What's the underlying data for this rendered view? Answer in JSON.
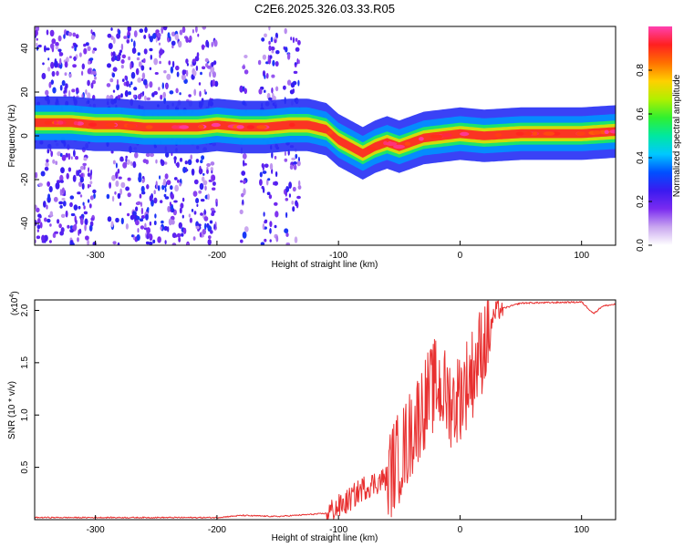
{
  "title": "C2E6.2025.326.03.33.R05",
  "chart_data": [
    {
      "type": "heatmap",
      "xlabel": "Height of straight line (km)",
      "ylabel": "Frequency (Hz)",
      "xlim": [
        -350,
        128
      ],
      "ylim": [
        -50,
        50
      ],
      "x_ticks": [
        -300,
        -200,
        -100,
        0,
        100
      ],
      "y_ticks": [
        -40,
        -20,
        0,
        20,
        40
      ],
      "colorbar": {
        "label": "Normalized spectral amplitude",
        "range": [
          0,
          1
        ],
        "ticks": [
          "0.0",
          "0.2",
          "0.4",
          "0.6",
          "0.8"
        ],
        "colormap": [
          "#ffffff",
          "#c9a6ef",
          "#7a2bf0",
          "#3a1af0",
          "#0050ff",
          "#00c8ff",
          "#00e8a0",
          "#30f030",
          "#b0f000",
          "#ffd000",
          "#ff7000",
          "#ff2020",
          "#ff40b0"
        ]
      },
      "ridge": [
        {
          "x": -345,
          "f": 6
        },
        {
          "x": -320,
          "f": 6
        },
        {
          "x": -300,
          "f": 5
        },
        {
          "x": -280,
          "f": 5
        },
        {
          "x": -260,
          "f": 4
        },
        {
          "x": -240,
          "f": 4
        },
        {
          "x": -215,
          "f": 4
        },
        {
          "x": -200,
          "f": 5
        },
        {
          "x": -180,
          "f": 4
        },
        {
          "x": -160,
          "f": 4
        },
        {
          "x": -140,
          "f": 5
        },
        {
          "x": -125,
          "f": 5
        },
        {
          "x": -110,
          "f": 3
        },
        {
          "x": -100,
          "f": -2
        },
        {
          "x": -90,
          "f": -5
        },
        {
          "x": -80,
          "f": -8
        },
        {
          "x": -70,
          "f": -5
        },
        {
          "x": -60,
          "f": -3
        },
        {
          "x": -50,
          "f": -5
        },
        {
          "x": -40,
          "f": -3
        },
        {
          "x": -30,
          "f": -1
        },
        {
          "x": -15,
          "f": 0
        },
        {
          "x": 0,
          "f": 1
        },
        {
          "x": 20,
          "f": 0
        },
        {
          "x": 50,
          "f": 1
        },
        {
          "x": 80,
          "f": 1
        },
        {
          "x": 100,
          "f": 1
        },
        {
          "x": 128,
          "f": 2
        }
      ],
      "noise_bands": [
        [
          -350,
          -300
        ],
        [
          -290,
          -200
        ],
        [
          -180,
          -175
        ],
        [
          -165,
          -150
        ],
        [
          -145,
          -132
        ]
      ]
    },
    {
      "type": "line",
      "xlabel": "Height of straight line (km)",
      "ylabel": "SNR (10 * v/v)",
      "y_multiplier": "(x10",
      "y_multiplier_exp": "4",
      "xlim": [
        -350,
        128
      ],
      "ylim": [
        0,
        2.1
      ],
      "x_ticks": [
        -300,
        -200,
        -100,
        0,
        100
      ],
      "y_ticks": [
        "0.5",
        "1.0",
        "1.5",
        "2.0"
      ],
      "line_color": "#e83030",
      "trend": [
        {
          "x": -350,
          "y": 0.02
        },
        {
          "x": -250,
          "y": 0.02
        },
        {
          "x": -200,
          "y": 0.02
        },
        {
          "x": -180,
          "y": 0.04
        },
        {
          "x": -150,
          "y": 0.03
        },
        {
          "x": -110,
          "y": 0.06
        },
        {
          "x": -95,
          "y": 0.15
        },
        {
          "x": -80,
          "y": 0.3
        },
        {
          "x": -60,
          "y": 0.4
        },
        {
          "x": -45,
          "y": 0.7
        },
        {
          "x": -30,
          "y": 1.1
        },
        {
          "x": -20,
          "y": 1.3
        },
        {
          "x": -5,
          "y": 1.1
        },
        {
          "x": 10,
          "y": 1.4
        },
        {
          "x": 20,
          "y": 1.7
        },
        {
          "x": 30,
          "y": 2.0
        },
        {
          "x": 50,
          "y": 2.07
        },
        {
          "x": 100,
          "y": 2.08
        },
        {
          "x": 110,
          "y": 1.97
        },
        {
          "x": 117,
          "y": 2.04
        },
        {
          "x": 128,
          "y": 2.06
        }
      ]
    }
  ]
}
